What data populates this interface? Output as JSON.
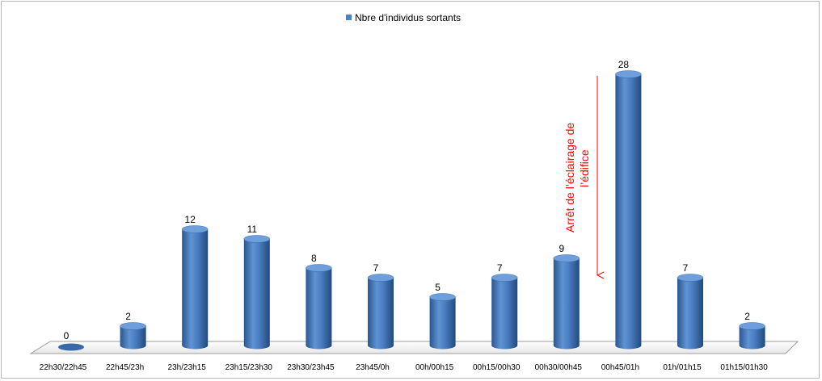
{
  "chart_data": {
    "type": "bar",
    "categories": [
      "22h30/22h45",
      "22h45/23h",
      "23h/23h15",
      "23h15/23h30",
      "23h30/23h45",
      "23h45/0h",
      "00h/00h15",
      "00h15/00h30",
      "00h30/00h45",
      "00h45/01h",
      "01h/01h15",
      "01h15/01h30"
    ],
    "series": [
      {
        "name": "Nbre d'individus sortants",
        "values": [
          0,
          2,
          12,
          11,
          8,
          7,
          5,
          7,
          9,
          28,
          7,
          2
        ]
      }
    ],
    "ylim": [
      0,
      28
    ],
    "grid": false,
    "legend_position": "top-center",
    "colors": {
      "bar": "#4f81bd",
      "bar_dark": "#2c5a93",
      "annotation": "#ff0000"
    },
    "annotation": {
      "lines": [
        "Arrêt de l’éclairage de",
        "l’édifice"
      ]
    }
  }
}
